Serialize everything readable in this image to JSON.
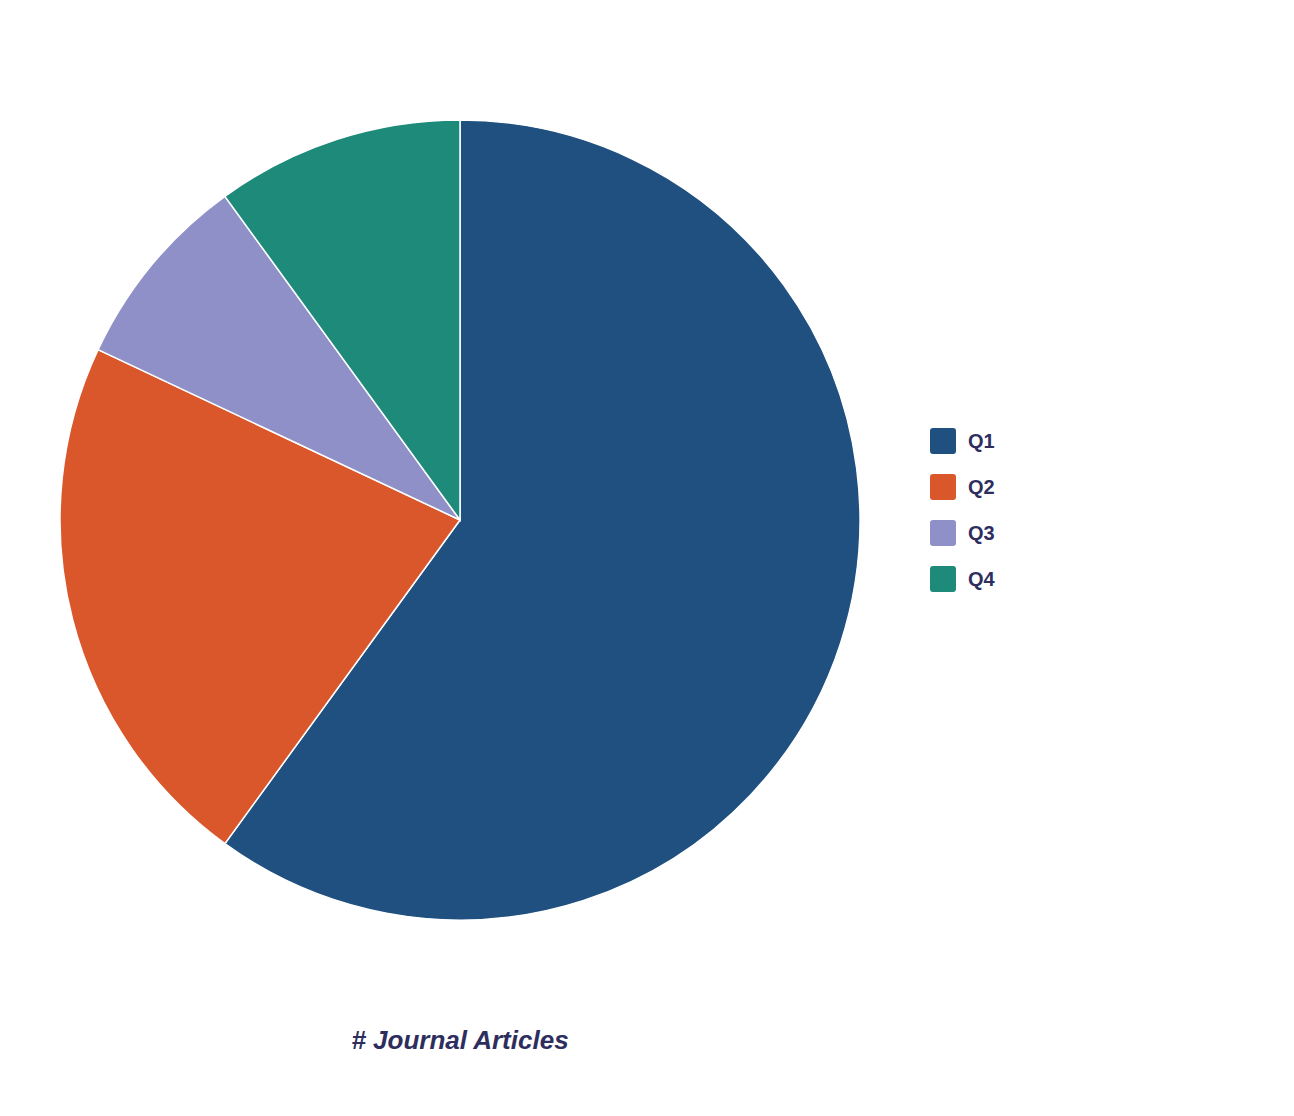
{
  "chart_data": {
    "type": "pie",
    "categories": [
      "Q1",
      "Q2",
      "Q3",
      "Q4"
    ],
    "values": [
      60,
      22,
      8,
      10
    ],
    "colors": [
      "#1f5080",
      "#d9572b",
      "#9090c8",
      "#1e8a7a"
    ],
    "xlabel": "# Journal Articles",
    "legend": "right"
  }
}
